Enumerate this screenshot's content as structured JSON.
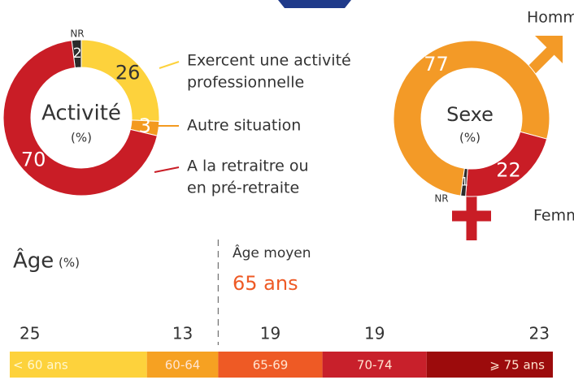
{
  "chart_data": [
    {
      "type": "donut",
      "title": "Activité",
      "subtitle": "(%)",
      "categories": [
        "NR",
        [
          "Exercent une activité",
          "professionnelle"
        ],
        [
          "Autre situation"
        ],
        [
          "A la retraitre ou",
          "en pré-retraite"
        ]
      ],
      "values": [
        2,
        26,
        3,
        70
      ],
      "colors": [
        "#2b2b2b",
        "#fdd23c",
        "#f39a1f",
        "#c91d26"
      ]
    },
    {
      "type": "donut",
      "title": "Sexe",
      "subtitle": "(%)",
      "categories": [
        "Hommes",
        "Femmes",
        "NR"
      ],
      "values": [
        77,
        22,
        1
      ],
      "colors": [
        "#f39a27",
        "#c91d26",
        "#2b2b2b"
      ]
    },
    {
      "type": "stacked-bar",
      "title": "Âge",
      "subtitle": "(%)",
      "annotation": {
        "label": "Âge moyen",
        "value": "65 ans"
      },
      "categories": [
        "< 60 ans",
        "60-64",
        "65-69",
        "70-74",
        "⩾ 75 ans"
      ],
      "values": [
        25,
        13,
        19,
        19,
        23
      ],
      "colors": [
        "#fdd23c",
        "#f6a122",
        "#ee5a25",
        "#c8202b",
        "#9c0b0c"
      ]
    }
  ]
}
